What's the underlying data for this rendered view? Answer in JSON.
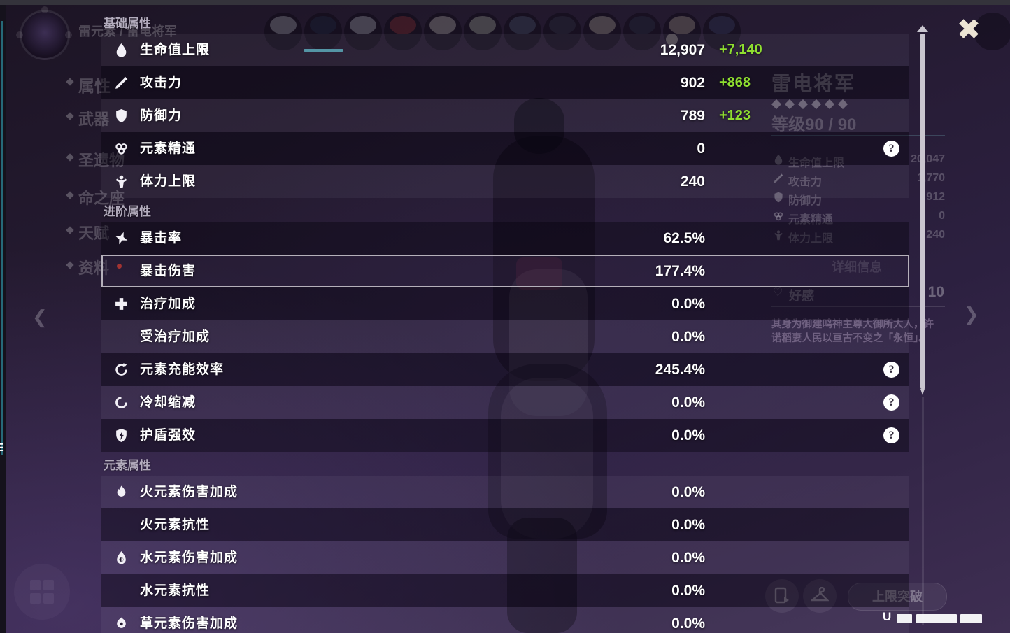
{
  "overlay": {
    "sections": [
      {
        "title": "基础属性",
        "rows": [
          {
            "icon": "hp",
            "label": "生命值上限",
            "value": "12,907",
            "bonus": "+7,140",
            "help": false,
            "selected": false
          },
          {
            "icon": "atk",
            "label": "攻击力",
            "value": "902",
            "bonus": "+868",
            "help": false,
            "selected": false
          },
          {
            "icon": "def",
            "label": "防御力",
            "value": "789",
            "bonus": "+123",
            "help": false,
            "selected": false
          },
          {
            "icon": "elemental-mastery",
            "label": "元素精通",
            "value": "0",
            "bonus": null,
            "help": true,
            "selected": false
          },
          {
            "icon": "stamina",
            "label": "体力上限",
            "value": "240",
            "bonus": null,
            "help": false,
            "selected": false
          }
        ]
      },
      {
        "title": "进阶属性",
        "rows": [
          {
            "icon": "crit-rate",
            "label": "暴击率",
            "value": "62.5%",
            "bonus": null,
            "help": false,
            "selected": false
          },
          {
            "icon": null,
            "label": "暴击伤害",
            "value": "177.4%",
            "bonus": null,
            "help": false,
            "selected": true
          },
          {
            "icon": "healing-bonus",
            "label": "治疗加成",
            "value": "0.0%",
            "bonus": null,
            "help": false,
            "selected": false
          },
          {
            "icon": null,
            "label": "受治疗加成",
            "value": "0.0%",
            "bonus": null,
            "help": false,
            "selected": false
          },
          {
            "icon": "energy-recharge",
            "label": "元素充能效率",
            "value": "245.4%",
            "bonus": null,
            "help": true,
            "selected": false
          },
          {
            "icon": "cooldown-reduction",
            "label": "冷却缩减",
            "value": "0.0%",
            "bonus": null,
            "help": true,
            "selected": false
          },
          {
            "icon": "shield-strength",
            "label": "护盾强效",
            "value": "0.0%",
            "bonus": null,
            "help": true,
            "selected": false
          }
        ]
      },
      {
        "title": "元素属性",
        "rows": [
          {
            "icon": "pyro",
            "label": "火元素伤害加成",
            "value": "0.0%",
            "bonus": null,
            "help": false,
            "selected": false
          },
          {
            "icon": null,
            "label": "火元素抗性",
            "value": "0.0%",
            "bonus": null,
            "help": false,
            "selected": false
          },
          {
            "icon": "hydro",
            "label": "水元素伤害加成",
            "value": "0.0%",
            "bonus": null,
            "help": false,
            "selected": false
          },
          {
            "icon": null,
            "label": "水元素抗性",
            "value": "0.0%",
            "bonus": null,
            "help": false,
            "selected": false
          },
          {
            "icon": "dendro",
            "label": "草元素伤害加成",
            "value": "0.0%",
            "bonus": null,
            "help": false,
            "selected": false
          }
        ]
      }
    ]
  },
  "background": {
    "element_label": "雷元素 / 雷电将军",
    "nav": {
      "items": [
        "属性",
        "武器",
        "圣遗物",
        "命之座",
        "天赋",
        "资料"
      ]
    },
    "character_pane": {
      "name": "雷电将军",
      "stars": 6,
      "level_label": "等级90 / 90",
      "stats": [
        {
          "icon": "hp",
          "label": "生命值上限",
          "value": "20,047"
        },
        {
          "icon": "atk",
          "label": "攻击力",
          "value": "1,770"
        },
        {
          "icon": "def",
          "label": "防御力",
          "value": "912"
        },
        {
          "icon": "elemental-mastery",
          "label": "元素精通",
          "value": "0"
        },
        {
          "icon": "stamina",
          "label": "体力上限",
          "value": "240"
        }
      ],
      "detail_label": "详细信息",
      "friendship_label": "好感",
      "friendship_value": "10",
      "lore_line1": "其身为御建鸣神主尊大御所大人，许",
      "lore_line2": "诺稻妻人民以亘古不变之「永恒」。"
    },
    "footer": {
      "ascend_label": "上限突破",
      "uid_prefix": "U"
    }
  },
  "colors": {
    "bonus_green": "#8fdf30",
    "selected_border": "#b5b0ba",
    "accent_teal": "#4c90a0"
  }
}
